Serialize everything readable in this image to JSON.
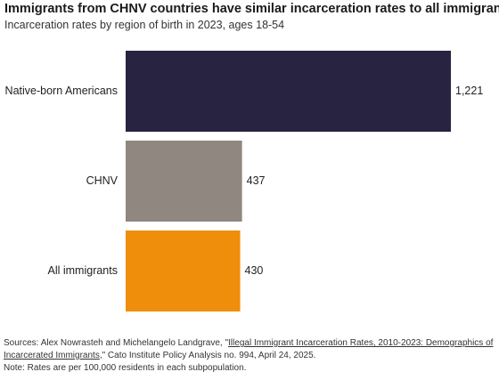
{
  "header": {
    "title": "Immigrants from CHNV countries have similar incarceration rates to all immigrants",
    "subtitle": "Incarceration rates by region of birth in 2023, ages 18-54"
  },
  "chart_data": {
    "type": "bar",
    "orientation": "horizontal",
    "categories": [
      "Native-born Americans",
      "CHNV",
      "All immigrants"
    ],
    "values": [
      1221,
      437,
      430
    ],
    "value_labels": [
      "1,221",
      "437",
      "430"
    ],
    "colors": [
      "#272340",
      "#8f8780",
      "#ee8e0b"
    ],
    "title": "Immigrants from CHNV countries have similar incarceration rates to all immigrants",
    "subtitle": "Incarceration rates by region of birth in 2023, ages 18-54",
    "xlabel": "",
    "ylabel": "",
    "grid": false,
    "legend": "none"
  },
  "footer": {
    "source_prefix": "Sources: Alex Nowrasteh and Michelangelo Landgrave, \"",
    "source_link": "Illegal Immigrant Incarceration Rates, 2010-2023: Demographics of Incarcerated Immigrants",
    "source_suffix": ",\" Cato Institute Policy Analysis no. 994, April 24, 2025.",
    "note": "Note: Rates are per 100,000 residents in each subpopulation."
  }
}
